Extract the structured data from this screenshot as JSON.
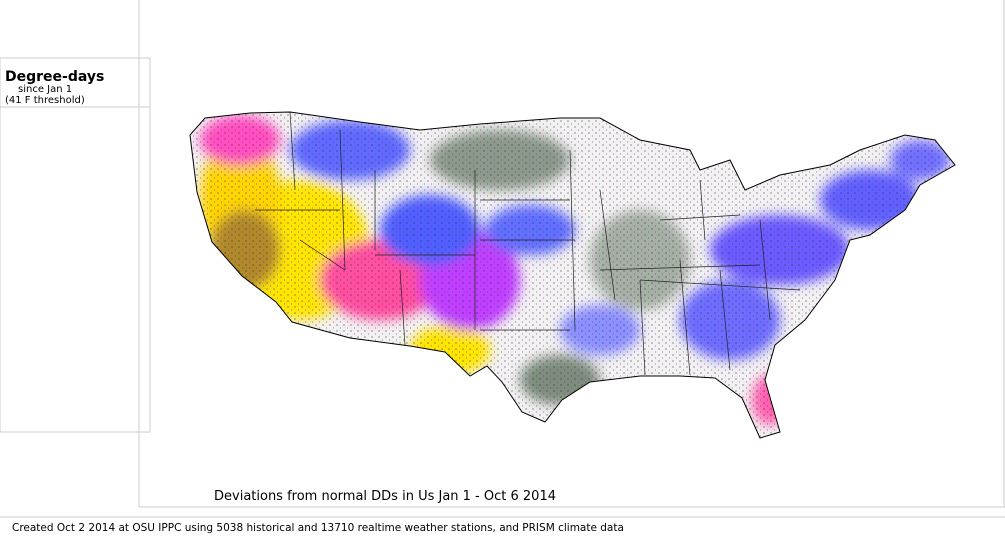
{
  "legend": {
    "title": "Degree-days",
    "subtitle": "since Jan 1",
    "threshold": "(41 F threshold)"
  },
  "map": {
    "title": "Deviations from normal DDs in Us  Jan 1 - Oct 6 2014"
  },
  "footer": {
    "credit": "Created Oct 2 2014 at OSU IPPC using 5038 historical and 13710 realtime weather stations, and PRISM climate data"
  }
}
